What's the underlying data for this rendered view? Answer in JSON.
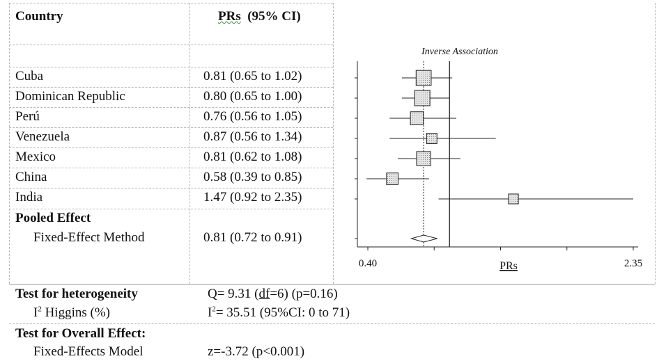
{
  "table": {
    "country_header": "Country",
    "pr_header_abbrev": "PRs",
    "pr_header_ci": "(95% CI)",
    "rows": [
      {
        "country": "Cuba",
        "pr_text": "0.81 (0.65 to 1.02)"
      },
      {
        "country": "Dominican Republic",
        "pr_text": "0.80 (0.65 to 1.00)"
      },
      {
        "country": "Perú",
        "pr_text": "0.76 (0.56 to 1.05)"
      },
      {
        "country": "Venezuela",
        "pr_text": "0.87 (0.56 to 1.34)"
      },
      {
        "country": "Mexico",
        "pr_text": "0.81 (0.62 to 1.08)"
      },
      {
        "country": "China",
        "pr_text": "0.58 (0.39 to 0.85)"
      },
      {
        "country": "India",
        "pr_text": "1.47 (0.92 to 2.35)"
      }
    ],
    "pooled_header": "Pooled Effect",
    "pooled_method": "Fixed-Effect Method",
    "pooled_text": "0.81 (0.72 to 0.91)"
  },
  "heterogeneity": {
    "label": "Test for heterogeneity",
    "q_prefix": "Q= 9.31 (",
    "q_df": "df",
    "q_suffix": "=6) (p=0.16)",
    "i2_label_pre": "I",
    "i2_label_sup": "2",
    "i2_label_post": " Higgins (%)",
    "i2_value_pre": "I",
    "i2_value_sup": "2",
    "i2_value_post": "= 35.51 (95%CI: 0 to 71)"
  },
  "overall": {
    "label": "Test for Overall Effect:",
    "model": "Fixed-Effects Model",
    "z_text": "z=-3.72 (p<0.001)"
  },
  "chart_data": {
    "type": "forest",
    "annotation": "Inverse Association",
    "xlabel": "PRs",
    "xlim": [
      0.4,
      2.35
    ],
    "x_tick_labels": [
      "0.40",
      "2.35"
    ],
    "x_tick_count": 5,
    "reference_line": 1.0,
    "pooled_line": 0.81,
    "studies": [
      {
        "pr": 0.81,
        "lo": 0.65,
        "hi": 1.02,
        "weight": 20
      },
      {
        "pr": 0.8,
        "lo": 0.65,
        "hi": 1.0,
        "weight": 21
      },
      {
        "pr": 0.76,
        "lo": 0.56,
        "hi": 1.05,
        "weight": 12
      },
      {
        "pr": 0.87,
        "lo": 0.56,
        "hi": 1.34,
        "weight": 5
      },
      {
        "pr": 0.81,
        "lo": 0.62,
        "hi": 1.08,
        "weight": 16
      },
      {
        "pr": 0.58,
        "lo": 0.39,
        "hi": 0.85,
        "weight": 8
      },
      {
        "pr": 1.47,
        "lo": 0.92,
        "hi": 2.35,
        "weight": 4
      }
    ],
    "pooled": {
      "pr": 0.81,
      "lo": 0.72,
      "hi": 0.91
    },
    "colors": {
      "line": "#222222",
      "box_fill": "#e4e4e4",
      "box_dots": "#8a8a8a"
    }
  }
}
